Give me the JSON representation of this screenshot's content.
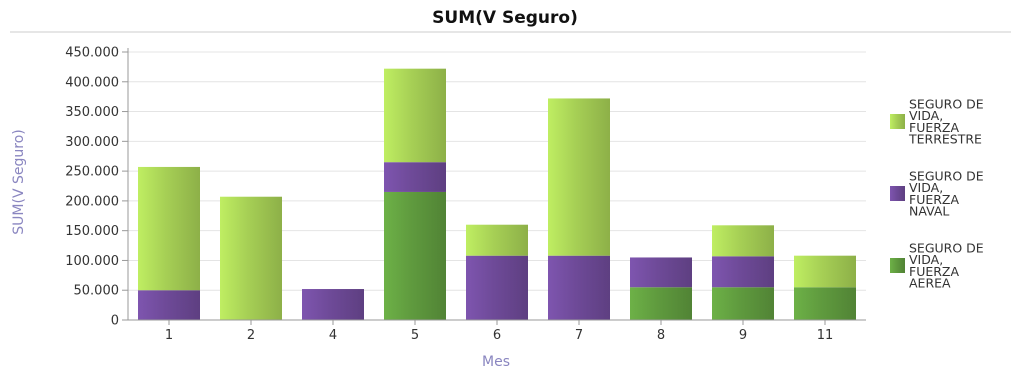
{
  "chart_data": {
    "type": "bar",
    "stacked": true,
    "title": "SUM(V Seguro)",
    "xlabel": "Mes",
    "ylabel": "SUM(V Seguro)",
    "categories": [
      "1",
      "2",
      "4",
      "5",
      "6",
      "7",
      "8",
      "9",
      "11"
    ],
    "ylim": [
      0,
      450000
    ],
    "yticks": [
      "0",
      "50.000",
      "100.000",
      "150.000",
      "200.000",
      "250.000",
      "300.000",
      "350.000",
      "400.000",
      "450.000"
    ],
    "grid": true,
    "legend_position": "right",
    "series": [
      {
        "name": "SEGURO DE VIDA, FUERZA AEREA",
        "label_lines": [
          "SEGURO DE",
          "VIDA,",
          "FUERZA",
          "AEREA"
        ],
        "color": "#5f9a3e",
        "values": [
          0,
          0,
          0,
          215000,
          0,
          0,
          55000,
          55000,
          55000
        ]
      },
      {
        "name": "SEGURO DE VIDA, FUERZA NAVAL",
        "label_lines": [
          "SEGURO DE",
          "VIDA,",
          "FUERZA",
          "NAVAL"
        ],
        "color": "#6e4a98",
        "values": [
          50000,
          0,
          52000,
          50000,
          108000,
          108000,
          50000,
          52000,
          0
        ]
      },
      {
        "name": "SEGURO DE VIDA, FUERZA TERRESTRE",
        "label_lines": [
          "SEGURO DE",
          "VIDA,",
          "FUERZA",
          "TERRESTRE"
        ],
        "color": "#a6cf55",
        "values": [
          207000,
          207000,
          0,
          157000,
          52000,
          264000,
          0,
          52000,
          53000
        ]
      }
    ]
  }
}
